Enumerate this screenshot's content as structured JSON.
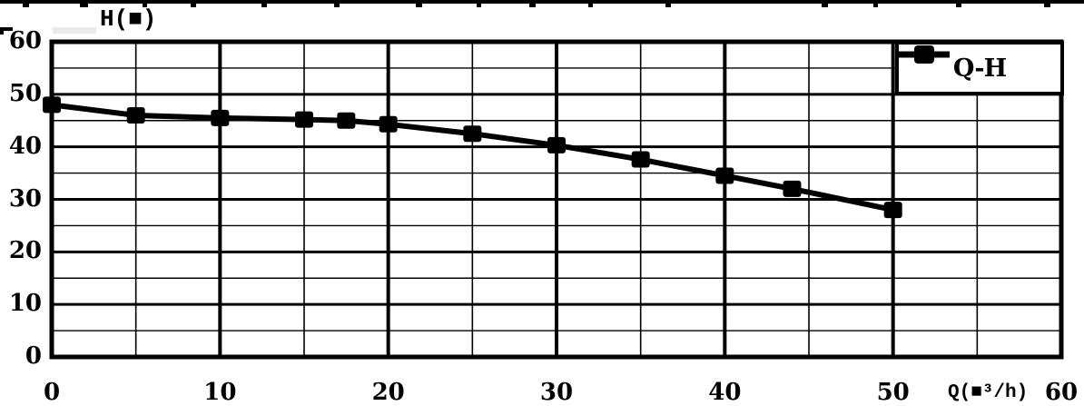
{
  "colors": {
    "ink": "#000000",
    "paper": "#ffffff"
  },
  "chart_data": {
    "type": "line",
    "title": "",
    "xlabel": "Q(■³/h)",
    "ylabel": "H(■)",
    "xlim": [
      0,
      60
    ],
    "ylim": [
      0,
      60
    ],
    "x_major_ticks": [
      0,
      10,
      20,
      30,
      40,
      50,
      60
    ],
    "y_major_ticks": [
      0,
      10,
      20,
      30,
      40,
      50,
      60
    ],
    "minor_grid_step": 5,
    "grid": "major+minor",
    "legend": {
      "position": "top-right",
      "entries": [
        {
          "label": "Q-H",
          "marker": "square"
        }
      ]
    },
    "series": [
      {
        "name": "Q-H",
        "marker": "square",
        "color": "#000000",
        "x": [
          0,
          5,
          10,
          15,
          17.5,
          20,
          25,
          30,
          35,
          40,
          44,
          50
        ],
        "y": [
          48,
          46,
          45.5,
          45.2,
          45,
          44.3,
          42.5,
          40.3,
          37.6,
          34.5,
          32,
          28
        ]
      }
    ]
  }
}
